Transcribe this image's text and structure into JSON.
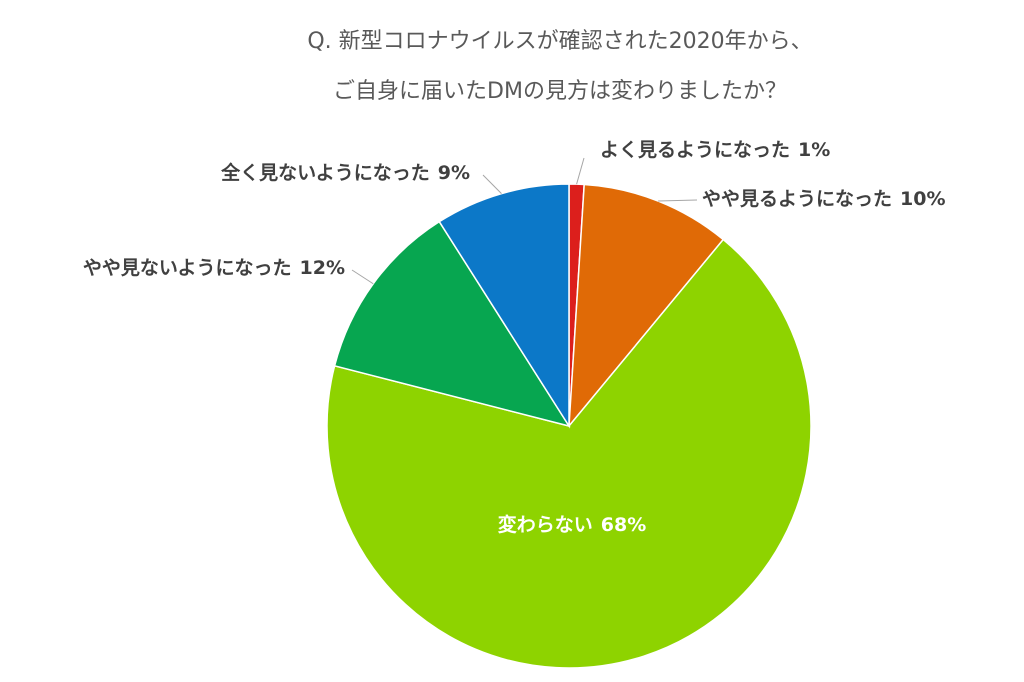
{
  "chart_data": {
    "type": "pie",
    "title": [
      "Q. 新型コロナウイルスが確認された2020年から、",
      "ご自身に届いたDMの見方は変わりましたか？"
    ],
    "categories": [
      "よく見るようになった",
      "やや見るようになった",
      "変わらない",
      "やや見ないようになった",
      "全く見ないようになった"
    ],
    "values": [
      1,
      10,
      68,
      12,
      9
    ],
    "value_labels": [
      "1%",
      "10%",
      "68%",
      "12%",
      "9%"
    ],
    "colors": [
      "#dc1f1c",
      "#e06a06",
      "#8ed300",
      "#07a650",
      "#0c78c8"
    ]
  }
}
